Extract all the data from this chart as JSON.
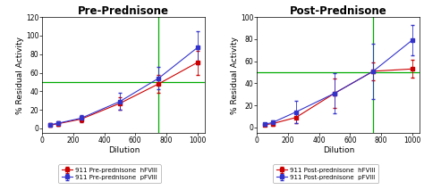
{
  "pre": {
    "title": "Pre-Prednisone",
    "x": [
      50,
      100,
      250,
      500,
      750,
      1000
    ],
    "nfviii_y": [
      3.5,
      5,
      10,
      27,
      48,
      71
    ],
    "nfviii_err": [
      1.5,
      2.5,
      3,
      7,
      10,
      13
    ],
    "pfviii_y": [
      4,
      5.5,
      11,
      29,
      54,
      87
    ],
    "pfviii_err": [
      1.5,
      2.5,
      3,
      9,
      12,
      18
    ],
    "hline_y": 50,
    "vline_x": 750,
    "ylim": [
      -5,
      120
    ],
    "yticks": [
      0,
      20,
      40,
      60,
      80,
      100,
      120
    ],
    "xticks": [
      0,
      200,
      400,
      600,
      800,
      1000
    ],
    "legend1": "911 Pre-prednisone  hFVIII",
    "legend2": "911 Pre-prednisone  pFVIII"
  },
  "post": {
    "title": "Post-Prednisone",
    "x": [
      50,
      100,
      250,
      500,
      750,
      1000
    ],
    "nfviii_y": [
      2.5,
      3.5,
      9,
      31,
      51,
      53
    ],
    "nfviii_err": [
      1,
      2,
      5,
      13,
      8,
      8
    ],
    "pfviii_y": [
      3,
      4.5,
      14,
      31,
      51,
      79
    ],
    "pfviii_err": [
      1,
      2,
      10,
      18,
      25,
      14
    ],
    "hline_y": 50,
    "vline_x": 750,
    "ylim": [
      -5,
      100
    ],
    "yticks": [
      0,
      20,
      40,
      60,
      80,
      100
    ],
    "xticks": [
      0,
      200,
      400,
      600,
      800,
      1000
    ],
    "legend1": "911 Post-prednisone  hFVIII",
    "legend2": "911 Post-prednisone  pFVIII"
  },
  "nfviii_color": "#cc0000",
  "pfviii_color": "#3333cc",
  "hline_color": "#00aa00",
  "vline_color": "#00aa00",
  "plot_bg_color": "#ffffff",
  "fig_bg_color": "#ffffff",
  "ylabel": "% Residual Activity",
  "xlabel": "Dilution",
  "title_fontsize": 8.5,
  "label_fontsize": 6.5,
  "tick_fontsize": 5.5,
  "legend_fontsize": 5.0
}
